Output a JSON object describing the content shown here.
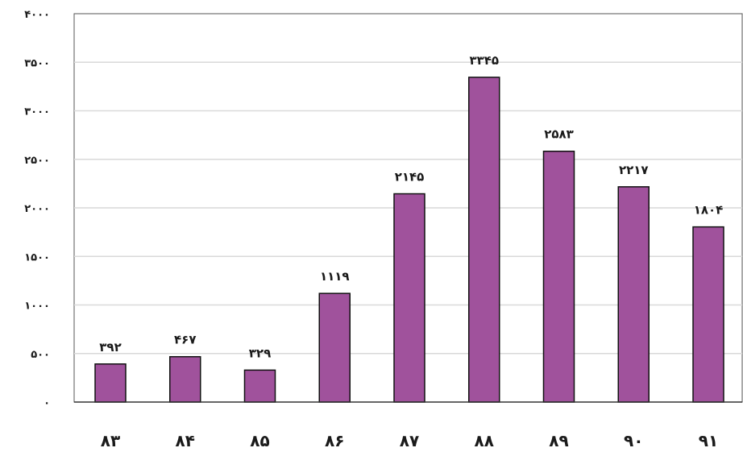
{
  "chart_data": {
    "type": "bar",
    "title": "",
    "xlabel": "",
    "ylabel": "",
    "categories": [
      "۸۳",
      "۸۴",
      "۸۵",
      "۸۶",
      "۸۷",
      "۸۸",
      "۸۹",
      "۹۰",
      "۹۱"
    ],
    "values": [
      392,
      467,
      329,
      1119,
      2145,
      3345,
      2583,
      2217,
      1804
    ],
    "value_labels": [
      "۳۹۲",
      "۴۶۷",
      "۳۲۹",
      "۱۱۱۹",
      "۲۱۴۵",
      "۳۳۴۵",
      "۲۵۸۳",
      "۲۲۱۷",
      "۱۸۰۴"
    ],
    "ylim": [
      0,
      4000
    ],
    "yticks": [
      0,
      500,
      1000,
      1500,
      2000,
      2500,
      3000,
      3500,
      4000
    ],
    "ytick_labels": [
      "۰",
      "۵۰۰",
      "۱۰۰۰",
      "۱۵۰۰",
      "۲۰۰۰",
      "۲۵۰۰",
      "۳۰۰۰",
      "۳۵۰۰",
      "۴۰۰۰"
    ],
    "grid": true,
    "legend": "none",
    "colors": {
      "bar": "#A0529C",
      "bar_edge": "#111111",
      "grid": "#d9d9d9",
      "axis": "#555555"
    }
  }
}
